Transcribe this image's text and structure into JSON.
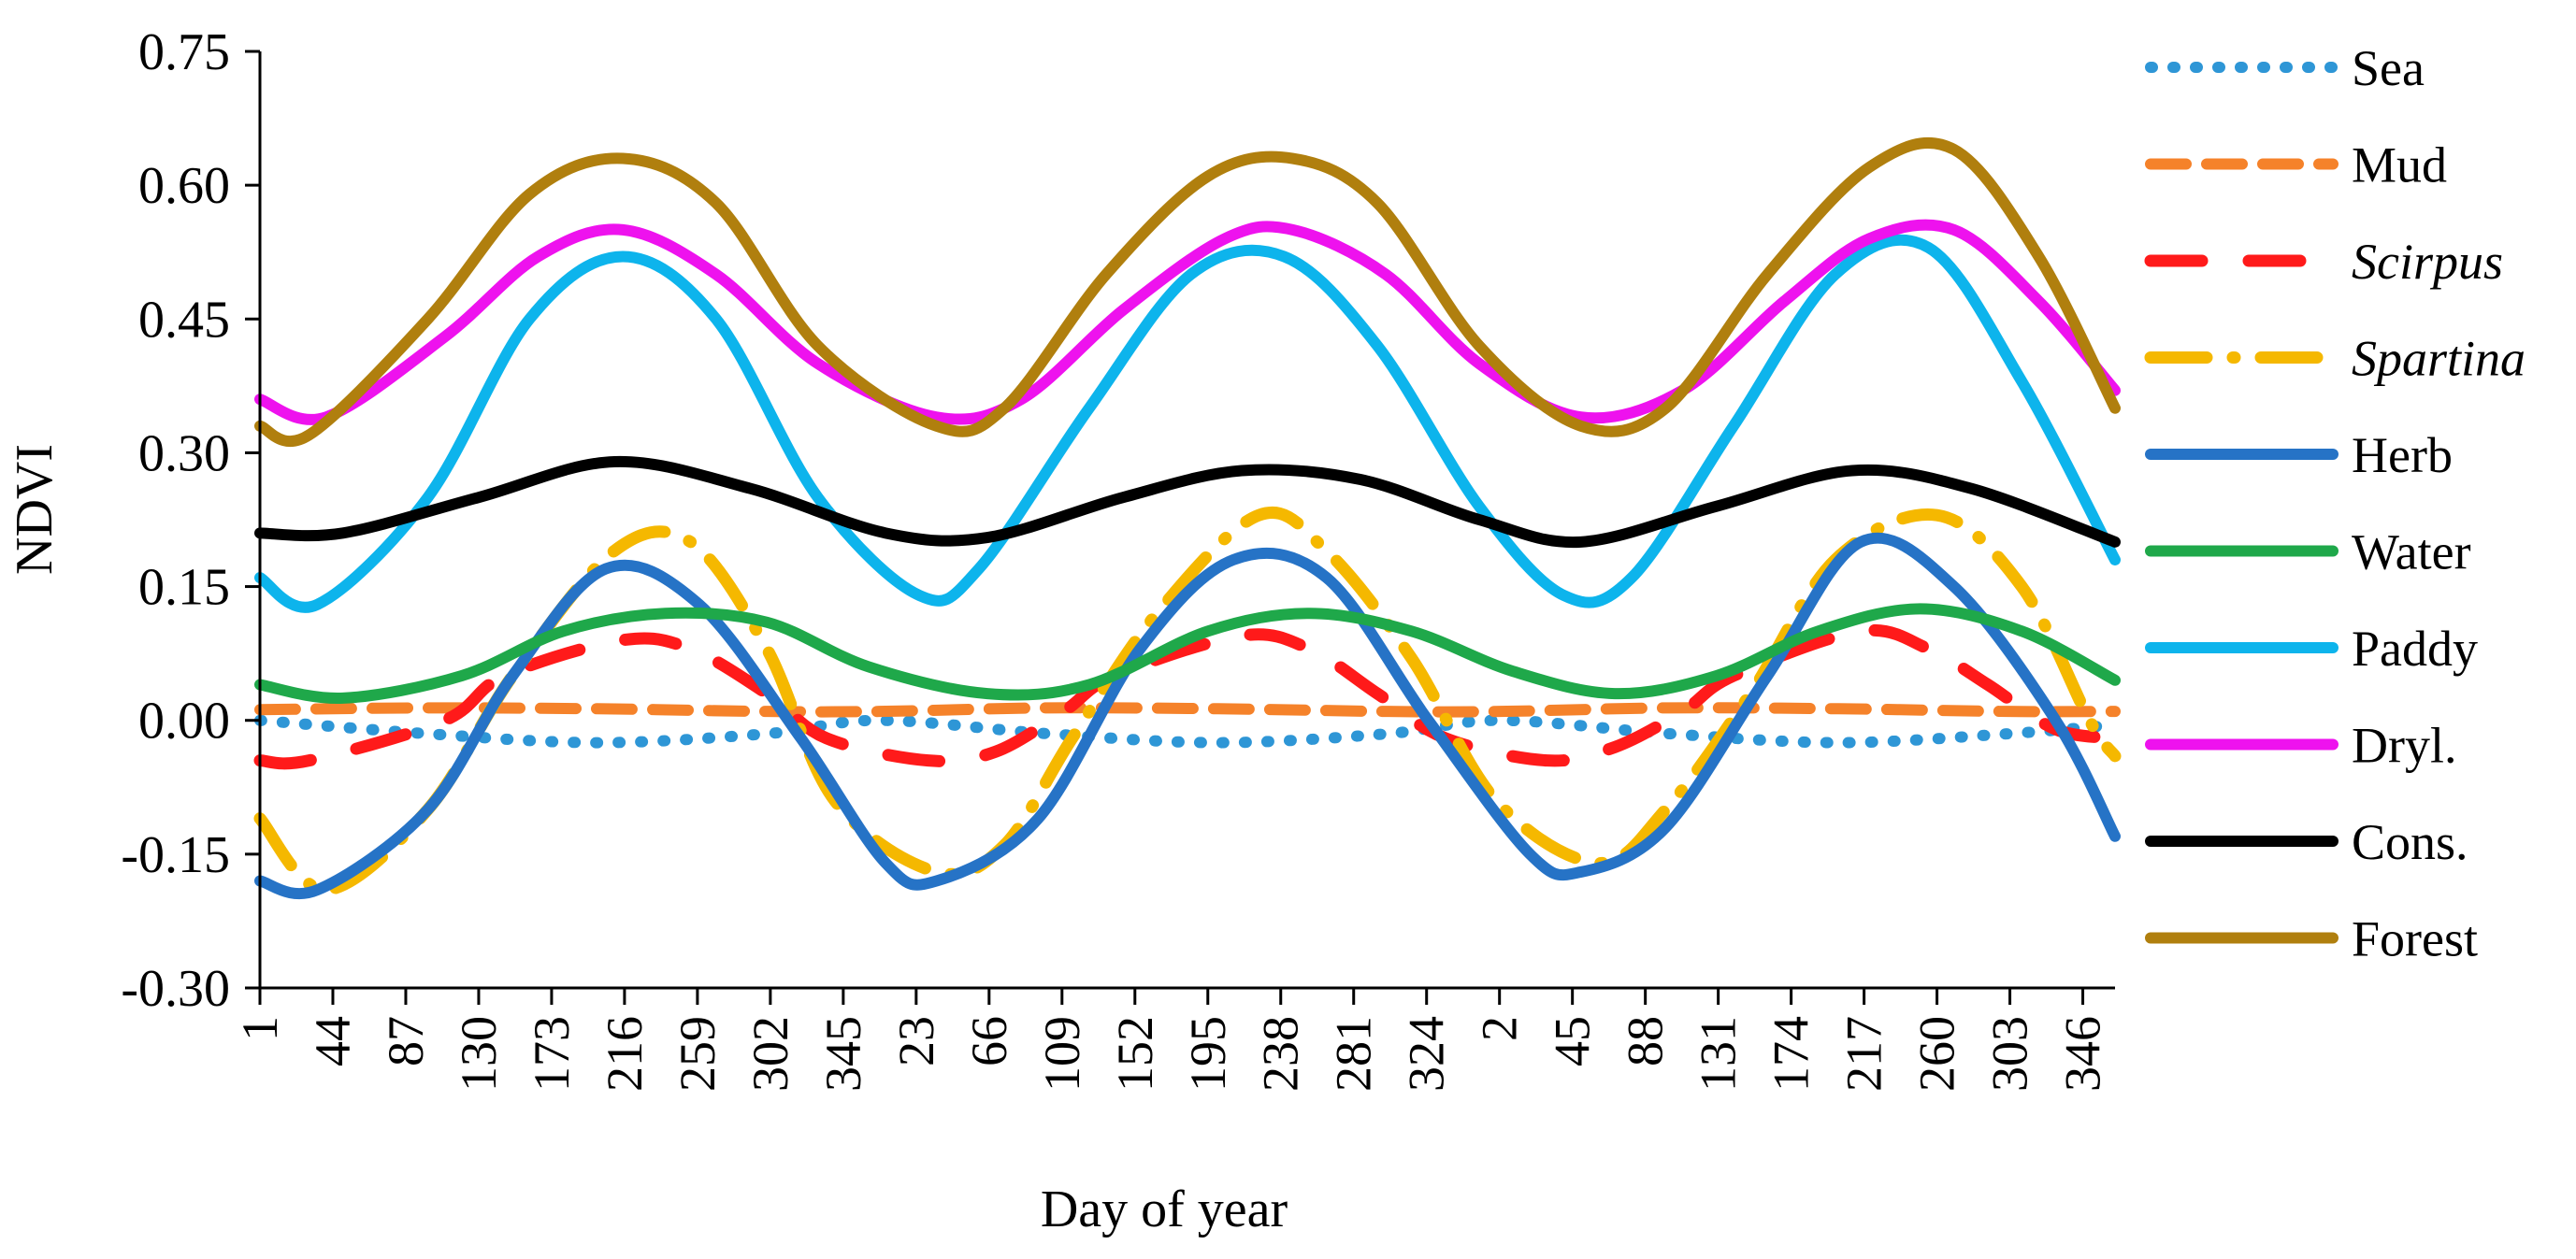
{
  "chart_data": {
    "type": "line",
    "xlabel": "Day of year",
    "ylabel": "NDVI",
    "ylim": [
      -0.3,
      0.75
    ],
    "yticks": [
      "0.75",
      "0.60",
      "0.45",
      "0.30",
      "0.15",
      "0.00",
      "-0.15",
      "-0.30"
    ],
    "ytick_values": [
      0.75,
      0.6,
      0.45,
      0.3,
      0.15,
      0.0,
      -0.15,
      -0.3
    ],
    "xticks": [
      "1",
      "44",
      "87",
      "130",
      "173",
      "216",
      "259",
      "302",
      "345",
      "23",
      "66",
      "109",
      "152",
      "195",
      "238",
      "281",
      "324",
      "2",
      "45",
      "88",
      "131",
      "174",
      "217",
      "260",
      "303",
      "346"
    ],
    "x_start_day": 1,
    "x_span_days": 1095,
    "x_tick_offsets": [
      0,
      43,
      86,
      129,
      172,
      215,
      258,
      301,
      344,
      387,
      430,
      473,
      516,
      559,
      602,
      645,
      688,
      731,
      774,
      817,
      860,
      903,
      946,
      989,
      1032,
      1075
    ],
    "grid": false,
    "legend_position": "right",
    "series": [
      {
        "name": "Sea",
        "italic": false,
        "color": "#2e96d6",
        "style": "dotted",
        "x": [
          1,
          100,
          200,
          300,
          366,
          466,
          566,
          666,
          732,
          832,
          932,
          1032,
          1095
        ],
        "values": [
          0.0,
          -0.015,
          -0.025,
          -0.015,
          0.0,
          -0.015,
          -0.025,
          -0.015,
          0.0,
          -0.015,
          -0.025,
          -0.015,
          -0.005
        ]
      },
      {
        "name": "Mud",
        "italic": false,
        "color": "#f5822a",
        "style": "dashed",
        "x": [
          1,
          100,
          200,
          300,
          366,
          466,
          566,
          666,
          732,
          832,
          932,
          1032,
          1095
        ],
        "values": [
          0.012,
          0.014,
          0.013,
          0.01,
          0.01,
          0.014,
          0.013,
          0.01,
          0.01,
          0.014,
          0.013,
          0.01,
          0.01
        ]
      },
      {
        "name": "Scirpus",
        "italic": true,
        "color": "#ff1a1a",
        "style": "longdash",
        "x": [
          1,
          30,
          110,
          145,
          215,
          255,
          300,
          335,
          395,
          435,
          475,
          505,
          580,
          620,
          660,
          700,
          760,
          800,
          840,
          870,
          945,
          985,
          1020,
          1060,
          1095
        ],
        "values": [
          -0.045,
          -0.045,
          0.0,
          0.05,
          0.09,
          0.08,
          0.03,
          -0.02,
          -0.045,
          -0.035,
          0.01,
          0.05,
          0.095,
          0.08,
          0.03,
          -0.02,
          -0.045,
          -0.03,
          0.01,
          0.05,
          0.1,
          0.08,
          0.04,
          -0.01,
          -0.02
        ]
      },
      {
        "name": "Spartina",
        "italic": true,
        "color": "#f5b800",
        "style": "dashdot",
        "x": [
          1,
          40,
          100,
          150,
          210,
          255,
          300,
          340,
          400,
          440,
          480,
          530,
          590,
          630,
          680,
          730,
          790,
          830,
          880,
          930,
          990,
          1040,
          1080,
          1095
        ],
        "values": [
          -0.11,
          -0.19,
          -0.1,
          0.05,
          0.19,
          0.2,
          0.08,
          -0.09,
          -0.17,
          -0.14,
          -0.02,
          0.12,
          0.23,
          0.19,
          0.07,
          -0.09,
          -0.16,
          -0.1,
          0.03,
          0.18,
          0.23,
          0.15,
          0.0,
          -0.04
        ]
      },
      {
        "name": "Herb",
        "italic": false,
        "color": "#2673c6",
        "style": "solid",
        "x": [
          1,
          35,
          100,
          150,
          205,
          260,
          320,
          370,
          400,
          460,
          520,
          575,
          630,
          690,
          750,
          780,
          830,
          890,
          945,
          1000,
          1060,
          1095
        ],
        "values": [
          -0.18,
          -0.19,
          -0.1,
          0.05,
          0.17,
          0.13,
          -0.02,
          -0.16,
          -0.18,
          -0.11,
          0.08,
          0.18,
          0.16,
          0.0,
          -0.15,
          -0.17,
          -0.12,
          0.05,
          0.2,
          0.15,
          0.0,
          -0.13
        ]
      },
      {
        "name": "Water",
        "italic": false,
        "color": "#1fa84a",
        "style": "solid",
        "x": [
          1,
          50,
          120,
          180,
          240,
          300,
          360,
          430,
          490,
          560,
          620,
          680,
          740,
          800,
          860,
          920,
          980,
          1040,
          1095
        ],
        "values": [
          0.04,
          0.025,
          0.05,
          0.1,
          0.12,
          0.11,
          0.06,
          0.03,
          0.04,
          0.1,
          0.12,
          0.1,
          0.055,
          0.03,
          0.05,
          0.1,
          0.125,
          0.1,
          0.045
        ]
      },
      {
        "name": "Paddy",
        "italic": false,
        "color": "#0db4ec",
        "style": "solid",
        "x": [
          1,
          35,
          100,
          160,
          215,
          270,
          330,
          390,
          425,
          490,
          550,
          605,
          660,
          720,
          770,
          810,
          870,
          930,
          985,
          1040,
          1095
        ],
        "values": [
          0.16,
          0.13,
          0.25,
          0.45,
          0.52,
          0.45,
          0.25,
          0.14,
          0.17,
          0.35,
          0.5,
          0.52,
          0.42,
          0.24,
          0.14,
          0.16,
          0.33,
          0.5,
          0.53,
          0.38,
          0.18
        ]
      },
      {
        "name": "Dryl.",
        "italic": false,
        "color": "#ee12ee",
        "style": "solid",
        "x": [
          1,
          40,
          110,
          165,
          215,
          270,
          330,
          400,
          450,
          510,
          570,
          610,
          665,
          720,
          780,
          840,
          900,
          950,
          1000,
          1050,
          1095
        ],
        "values": [
          0.36,
          0.34,
          0.43,
          0.52,
          0.55,
          0.5,
          0.4,
          0.34,
          0.36,
          0.46,
          0.54,
          0.55,
          0.5,
          0.4,
          0.34,
          0.37,
          0.47,
          0.54,
          0.55,
          0.47,
          0.37
        ]
      },
      {
        "name": "Cons.",
        "italic": false,
        "color": "#000000",
        "style": "solid",
        "x": [
          1,
          50,
          130,
          210,
          290,
          370,
          430,
          510,
          580,
          650,
          720,
          780,
          860,
          940,
          1010,
          1095
        ],
        "values": [
          0.21,
          0.21,
          0.25,
          0.29,
          0.26,
          0.21,
          0.205,
          0.25,
          0.28,
          0.27,
          0.225,
          0.2,
          0.24,
          0.28,
          0.26,
          0.2
        ]
      },
      {
        "name": "Forest",
        "italic": false,
        "color": "#b07f0e",
        "style": "solid",
        "x": [
          1,
          30,
          100,
          160,
          215,
          270,
          330,
          400,
          440,
          500,
          560,
          610,
          660,
          720,
          780,
          830,
          890,
          950,
          1000,
          1050,
          1095
        ],
        "values": [
          0.33,
          0.32,
          0.45,
          0.59,
          0.63,
          0.58,
          0.42,
          0.33,
          0.35,
          0.5,
          0.61,
          0.63,
          0.58,
          0.42,
          0.33,
          0.35,
          0.5,
          0.62,
          0.64,
          0.52,
          0.35
        ]
      }
    ]
  }
}
